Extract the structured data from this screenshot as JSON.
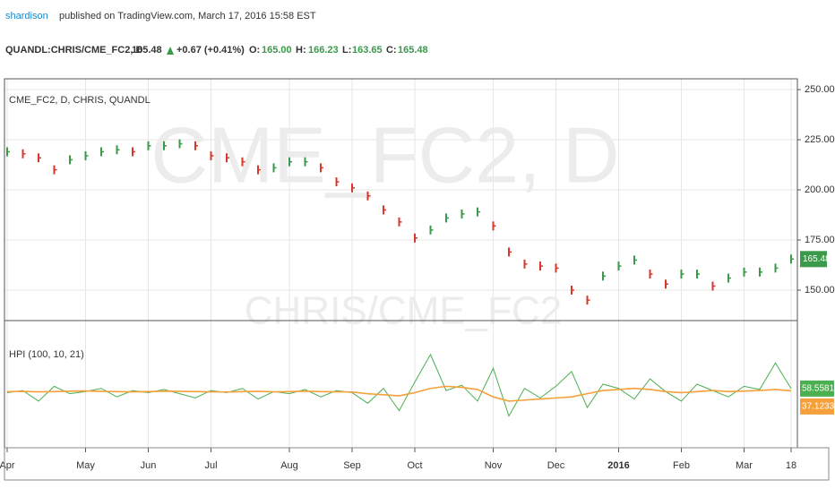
{
  "header": {
    "author": "shardison",
    "published": "published on TradingView.com, March 17, 2016 15:58 EST",
    "symbol": "QUANDL:CHRIS/CME_FC2, D",
    "price": "165.48",
    "change": "+0.67 (+0.41%)",
    "open_label": "O:",
    "open": "165.00",
    "high_label": "H:",
    "high": "166.23",
    "low_label": "L:",
    "low": "163.65",
    "close_label": "C:",
    "close": "165.48"
  },
  "chart_data": [
    {
      "type": "ohlc",
      "title": "CME_FC2, D, CHRIS, QUANDL",
      "watermark": "CME_FC2, D",
      "watermark2": "CHRIS/CME_FC2",
      "categories": [
        "Apr",
        null,
        null,
        null,
        null,
        "May",
        null,
        null,
        null,
        "Jun",
        null,
        null,
        null,
        "Jul",
        null,
        null,
        null,
        null,
        "Aug",
        null,
        null,
        null,
        "Sep",
        null,
        null,
        null,
        "Oct",
        null,
        null,
        null,
        null,
        "Nov",
        null,
        null,
        null,
        "Dec",
        null,
        null,
        null,
        "2016",
        null,
        null,
        null,
        "Feb",
        null,
        null,
        null,
        "Mar",
        null,
        null,
        "18"
      ],
      "values": [
        219,
        218,
        216,
        210,
        215,
        217,
        219,
        220,
        219,
        222,
        222,
        223,
        222,
        217,
        216,
        214,
        210,
        211,
        214,
        214,
        211,
        204,
        201,
        197,
        190,
        184,
        176,
        180,
        186,
        188,
        189,
        182,
        169,
        163,
        162,
        161,
        150,
        145,
        157,
        162,
        165,
        158,
        153,
        158,
        158,
        152,
        156,
        159,
        159,
        161,
        165.48
      ],
      "up_color": "#3a9a4a",
      "down_color": "#d9362b",
      "ylim": [
        134.8,
        255.4
      ],
      "yticks": [
        {
          "value": 150,
          "label": "150.00"
        },
        {
          "value": 175,
          "label": "175.00"
        },
        {
          "value": 200,
          "label": "200.00"
        },
        {
          "value": 225,
          "label": "225.00"
        },
        {
          "value": 250,
          "label": "250.00"
        }
      ],
      "grid": true
    },
    {
      "type": "line",
      "title": "HPI (100, 10, 21)",
      "ylim": [
        -500,
        700
      ],
      "series": [
        {
          "color": "#4caf50",
          "values": [
            20,
            40,
            -60,
            80,
            10,
            30,
            60,
            -20,
            40,
            20,
            50,
            10,
            -30,
            40,
            20,
            60,
            -40,
            30,
            10,
            50,
            -20,
            40,
            20,
            -80,
            60,
            -150,
            120,
            380,
            40,
            90,
            -60,
            250,
            -200,
            60,
            -30,
            80,
            220,
            -120,
            100,
            60,
            -40,
            150,
            30,
            -60,
            100,
            40,
            -20,
            80,
            50,
            300,
            58.5581
          ]
        },
        {
          "color": "#f5a03a",
          "values": [
            30,
            32,
            28,
            30,
            34,
            36,
            32,
            30,
            28,
            30,
            34,
            32,
            30,
            28,
            26,
            30,
            32,
            28,
            30,
            34,
            30,
            28,
            26,
            10,
            0,
            -10,
            20,
            60,
            80,
            70,
            50,
            -20,
            -60,
            -50,
            -40,
            -30,
            -20,
            10,
            40,
            50,
            60,
            50,
            30,
            20,
            30,
            40,
            30,
            35,
            40,
            50,
            37.1233
          ]
        }
      ]
    }
  ]
}
